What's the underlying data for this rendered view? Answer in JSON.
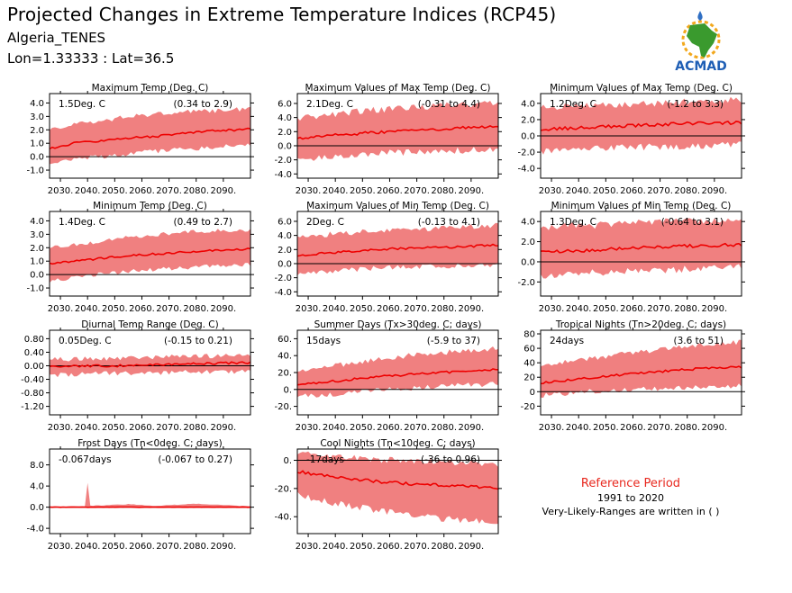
{
  "header": {
    "title": "Projected Changes in Extreme Temperature Indices (RCP45)",
    "station": "Algeria_TENES",
    "coords": "Lon=1.33333 : Lat=36.5"
  },
  "logo": {
    "text": "ACMAD",
    "colors": {
      "africa": "#3a9a2e",
      "text": "#1f5fb5",
      "sun": "#f2a81d",
      "drop": "#2f6fc4"
    }
  },
  "legend": {
    "title": "Reference Period",
    "period": "1991 to 2020",
    "note": "Very-Likely-Ranges are written in ( )"
  },
  "colors": {
    "band": "#f08080",
    "line": "#ee0000",
    "zero": "#000000"
  },
  "chart_data": [
    {
      "type": "area",
      "title": "Maximum Temp (Deg. C)",
      "summary": "1.5Deg. C",
      "range": "(0.34 to 2.9)",
      "x_ticks": [
        "2030.",
        "2040.",
        "2050.",
        "2060.",
        "2070.",
        "2080.",
        "2090."
      ],
      "xlim": [
        2026,
        2100
      ],
      "y_ticks": [
        "-1.0",
        "0.0",
        "1.0",
        "2.0",
        "3.0",
        "4.0"
      ],
      "ylim": [
        -1.6,
        4.7
      ],
      "median": [
        [
          2026,
          0.6
        ],
        [
          2035,
          1.0
        ],
        [
          2045,
          1.2
        ],
        [
          2055,
          1.4
        ],
        [
          2065,
          1.5
        ],
        [
          2075,
          1.75
        ],
        [
          2085,
          1.9
        ],
        [
          2100,
          2.05
        ]
      ],
      "low": [
        [
          2026,
          -0.4
        ],
        [
          2035,
          0.0
        ],
        [
          2045,
          0.2
        ],
        [
          2055,
          0.4
        ],
        [
          2065,
          0.6
        ],
        [
          2075,
          0.7
        ],
        [
          2085,
          0.9
        ],
        [
          2100,
          1.0
        ]
      ],
      "high": [
        [
          2026,
          1.8
        ],
        [
          2035,
          2.2
        ],
        [
          2045,
          2.5
        ],
        [
          2055,
          2.8
        ],
        [
          2065,
          3.0
        ],
        [
          2075,
          3.2
        ],
        [
          2085,
          3.2
        ],
        [
          2100,
          3.4
        ]
      ],
      "seed": 11,
      "noise": 0.45
    },
    {
      "type": "area",
      "title": "Maximum Values of Max Temp (Deg. C)",
      "summary": "2.1Deg. C",
      "range": "(-0.31 to 4.4)",
      "x_ticks": [
        "2030.",
        "2040.",
        "2050.",
        "2060.",
        "2070.",
        "2080.",
        "2090."
      ],
      "xlim": [
        2026,
        2100
      ],
      "y_ticks": [
        "-4.0",
        "-2.0",
        "0.0",
        "2.0",
        "4.0",
        "6.0"
      ],
      "ylim": [
        -4.6,
        7.4
      ],
      "median": [
        [
          2026,
          1.0
        ],
        [
          2040,
          1.5
        ],
        [
          2055,
          1.9
        ],
        [
          2070,
          2.2
        ],
        [
          2085,
          2.5
        ],
        [
          2100,
          2.8
        ]
      ],
      "low": [
        [
          2026,
          -1.5
        ],
        [
          2040,
          -1.0
        ],
        [
          2055,
          -0.6
        ],
        [
          2070,
          -0.4
        ],
        [
          2085,
          -0.2
        ],
        [
          2100,
          0.0
        ]
      ],
      "high": [
        [
          2026,
          3.5
        ],
        [
          2040,
          4.0
        ],
        [
          2055,
          4.6
        ],
        [
          2070,
          5.0
        ],
        [
          2085,
          5.3
        ],
        [
          2100,
          5.6
        ]
      ],
      "seed": 23,
      "noise": 1.2
    },
    {
      "type": "area",
      "title": "Minimum Values of Max Temp (Deg. C)",
      "summary": "1.2Deg. C",
      "range": "(-1.2 to 3.3)",
      "x_ticks": [
        "2030.",
        "2040.",
        "2050.",
        "2060.",
        "2070.",
        "2080.",
        "2090."
      ],
      "xlim": [
        2026,
        2100
      ],
      "y_ticks": [
        "-4.0",
        "-2.0",
        "0.0",
        "2.0",
        "4.0"
      ],
      "ylim": [
        -5.2,
        5.2
      ],
      "median": [
        [
          2026,
          0.8
        ],
        [
          2040,
          1.0
        ],
        [
          2055,
          1.2
        ],
        [
          2070,
          1.4
        ],
        [
          2085,
          1.6
        ],
        [
          2100,
          1.6
        ]
      ],
      "low": [
        [
          2026,
          -1.5
        ],
        [
          2040,
          -1.3
        ],
        [
          2055,
          -1.0
        ],
        [
          2070,
          -0.9
        ],
        [
          2085,
          -0.8
        ],
        [
          2100,
          -0.6
        ]
      ],
      "high": [
        [
          2026,
          3.0
        ],
        [
          2040,
          3.2
        ],
        [
          2055,
          3.4
        ],
        [
          2070,
          3.6
        ],
        [
          2085,
          3.8
        ],
        [
          2100,
          4.0
        ]
      ],
      "seed": 37,
      "noise": 1.1
    },
    {
      "type": "area",
      "title": "Minimum Temp (Deg. C)",
      "summary": "1.4Deg. C",
      "range": "(0.49 to 2.7)",
      "x_ticks": [
        "2030.",
        "2040.",
        "2050.",
        "2060.",
        "2070.",
        "2080.",
        "2090."
      ],
      "xlim": [
        2026,
        2100
      ],
      "y_ticks": [
        "-1.0",
        "0.0",
        "1.0",
        "2.0",
        "3.0",
        "4.0"
      ],
      "ylim": [
        -1.6,
        4.7
      ],
      "median": [
        [
          2026,
          0.8
        ],
        [
          2040,
          1.1
        ],
        [
          2055,
          1.4
        ],
        [
          2070,
          1.6
        ],
        [
          2085,
          1.8
        ],
        [
          2100,
          1.9
        ]
      ],
      "low": [
        [
          2026,
          -0.3
        ],
        [
          2040,
          0.1
        ],
        [
          2055,
          0.4
        ],
        [
          2070,
          0.6
        ],
        [
          2085,
          0.8
        ],
        [
          2100,
          0.9
        ]
      ],
      "high": [
        [
          2026,
          1.8
        ],
        [
          2040,
          2.2
        ],
        [
          2055,
          2.6
        ],
        [
          2070,
          2.9
        ],
        [
          2085,
          3.1
        ],
        [
          2100,
          3.2
        ]
      ],
      "seed": 41,
      "noise": 0.4
    },
    {
      "type": "area",
      "title": "Maximum Values of Min Temp (Deg. C)",
      "summary": "2Deg. C",
      "range": "(-0.13 to 4.1)",
      "x_ticks": [
        "2030.",
        "2040.",
        "2050.",
        "2060.",
        "2070.",
        "2080.",
        "2090."
      ],
      "xlim": [
        2026,
        2100
      ],
      "y_ticks": [
        "-4.0",
        "-2.0",
        "0.0",
        "2.0",
        "4.0",
        "6.0"
      ],
      "ylim": [
        -4.6,
        7.4
      ],
      "median": [
        [
          2026,
          1.2
        ],
        [
          2040,
          1.6
        ],
        [
          2055,
          2.0
        ],
        [
          2070,
          2.2
        ],
        [
          2085,
          2.4
        ],
        [
          2100,
          2.6
        ]
      ],
      "low": [
        [
          2026,
          -1.0
        ],
        [
          2040,
          -0.6
        ],
        [
          2055,
          -0.3
        ],
        [
          2070,
          0.0
        ],
        [
          2085,
          0.1
        ],
        [
          2100,
          0.3
        ]
      ],
      "high": [
        [
          2026,
          3.5
        ],
        [
          2040,
          3.8
        ],
        [
          2055,
          4.2
        ],
        [
          2070,
          4.5
        ],
        [
          2085,
          4.7
        ],
        [
          2100,
          5.0
        ]
      ],
      "seed": 53,
      "noise": 1.0
    },
    {
      "type": "area",
      "title": "Minimum Values of Min Temp (Deg. C)",
      "summary": "1.3Deg. C",
      "range": "(-0.64 to 3.1)",
      "x_ticks": [
        "2030.",
        "2040.",
        "2050.",
        "2060.",
        "2070.",
        "2080.",
        "2090."
      ],
      "xlim": [
        2026,
        2100
      ],
      "y_ticks": [
        "-2.0",
        "0.0",
        "2.0",
        "4.0"
      ],
      "ylim": [
        -3.4,
        5.0
      ],
      "median": [
        [
          2026,
          1.0
        ],
        [
          2040,
          1.1
        ],
        [
          2055,
          1.3
        ],
        [
          2070,
          1.5
        ],
        [
          2085,
          1.6
        ],
        [
          2100,
          1.7
        ]
      ],
      "low": [
        [
          2026,
          -1.0
        ],
        [
          2040,
          -0.8
        ],
        [
          2055,
          -0.6
        ],
        [
          2070,
          -0.5
        ],
        [
          2085,
          -0.3
        ],
        [
          2100,
          -0.2
        ]
      ],
      "high": [
        [
          2026,
          3.0
        ],
        [
          2040,
          3.2
        ],
        [
          2055,
          3.4
        ],
        [
          2070,
          3.6
        ],
        [
          2085,
          3.7
        ],
        [
          2100,
          3.9
        ]
      ],
      "seed": 67,
      "noise": 0.9
    },
    {
      "type": "area",
      "title": "Diurnal Temp Range (Deg. C)",
      "summary": "0.05Deg. C",
      "range": "(-0.15 to 0.21)",
      "x_ticks": [
        "2030.",
        "2040.",
        "2050.",
        "2060.",
        "2070.",
        "2080.",
        "2090."
      ],
      "xlim": [
        2026,
        2100
      ],
      "y_ticks": [
        "-1.20",
        "-0.80",
        "-0.40",
        "0.00",
        "0.40",
        "0.80"
      ],
      "ylim": [
        -1.45,
        1.05
      ],
      "median": [
        [
          2026,
          -0.02
        ],
        [
          2050,
          0.0
        ],
        [
          2075,
          0.05
        ],
        [
          2100,
          0.1
        ]
      ],
      "low": [
        [
          2026,
          -0.2
        ],
        [
          2050,
          -0.15
        ],
        [
          2075,
          -0.12
        ],
        [
          2100,
          -0.1
        ]
      ],
      "high": [
        [
          2026,
          0.12
        ],
        [
          2050,
          0.15
        ],
        [
          2075,
          0.2
        ],
        [
          2100,
          0.25
        ]
      ],
      "seed": 71,
      "noise": 0.18
    },
    {
      "type": "area",
      "title": "Summer Days (Tx>30deg. C; days)",
      "summary": "15days",
      "range": "(-5.9 to 37)",
      "x_ticks": [
        "2030.",
        "2040.",
        "2050.",
        "2060.",
        "2070.",
        "2080.",
        "2090."
      ],
      "xlim": [
        2026,
        2100
      ],
      "y_ticks": [
        "-20.",
        "0.",
        "20.",
        "40.",
        "60."
      ],
      "ylim": [
        -30,
        70
      ],
      "median": [
        [
          2026,
          5
        ],
        [
          2040,
          10
        ],
        [
          2055,
          15
        ],
        [
          2070,
          18
        ],
        [
          2085,
          21
        ],
        [
          2100,
          24
        ]
      ],
      "low": [
        [
          2026,
          -5
        ],
        [
          2040,
          -2
        ],
        [
          2055,
          2
        ],
        [
          2070,
          5
        ],
        [
          2085,
          8
        ],
        [
          2100,
          10
        ]
      ],
      "high": [
        [
          2026,
          18
        ],
        [
          2040,
          25
        ],
        [
          2055,
          32
        ],
        [
          2070,
          38
        ],
        [
          2085,
          42
        ],
        [
          2100,
          45
        ]
      ],
      "seed": 83,
      "noise": 8
    },
    {
      "type": "area",
      "title": "Tropical Nights (Tn>20deg. C; days)",
      "summary": "24days",
      "range": "(3.6 to 51)",
      "x_ticks": [
        "2030.",
        "2040.",
        "2050.",
        "2060.",
        "2070.",
        "2080.",
        "2090."
      ],
      "xlim": [
        2026,
        2100
      ],
      "y_ticks": [
        "-20",
        "0",
        "20",
        "40",
        "60",
        "80"
      ],
      "ylim": [
        -32,
        85
      ],
      "median": [
        [
          2026,
          12
        ],
        [
          2040,
          18
        ],
        [
          2055,
          23
        ],
        [
          2070,
          28
        ],
        [
          2085,
          32
        ],
        [
          2100,
          34
        ]
      ],
      "low": [
        [
          2026,
          -2
        ],
        [
          2040,
          3
        ],
        [
          2055,
          6
        ],
        [
          2070,
          8
        ],
        [
          2085,
          10
        ],
        [
          2100,
          12
        ]
      ],
      "high": [
        [
          2026,
          32
        ],
        [
          2040,
          40
        ],
        [
          2055,
          48
        ],
        [
          2070,
          55
        ],
        [
          2085,
          60
        ],
        [
          2100,
          65
        ]
      ],
      "seed": 97,
      "noise": 9
    },
    {
      "type": "area",
      "title": "Frost Days (Tn<0deg. C; days)",
      "summary": "-0.067days",
      "range": "(-0.067 to 0.27)",
      "x_ticks": [
        "2030.",
        "2040.",
        "2050.",
        "2060.",
        "2070.",
        "2080.",
        "2090."
      ],
      "xlim": [
        2026,
        2100
      ],
      "y_ticks": [
        "-4.0",
        "0.0",
        "4.0",
        "8.0"
      ],
      "ylim": [
        -5.0,
        11.0
      ],
      "median": [
        [
          2026,
          0
        ],
        [
          2100,
          0
        ]
      ],
      "low": [
        [
          2026,
          0
        ],
        [
          2100,
          0
        ]
      ],
      "high": [
        [
          2026,
          0.1
        ],
        [
          2039,
          0.1
        ],
        [
          2040,
          4.5
        ],
        [
          2041,
          0.2
        ],
        [
          2055,
          0.5
        ],
        [
          2065,
          0.2
        ],
        [
          2080,
          0.6
        ],
        [
          2100,
          0.1
        ]
      ],
      "seed": 101,
      "noise": 0.15
    },
    {
      "type": "area",
      "title": "Cool Nights (Tn<10deg. C; days)",
      "summary": "-17days",
      "range": "(-36 to 0.96)",
      "x_ticks": [
        "2030.",
        "2040.",
        "2050.",
        "2060.",
        "2070.",
        "2080.",
        "2090."
      ],
      "xlim": [
        2026,
        2100
      ],
      "y_ticks": [
        "-40.",
        "-20.",
        "0."
      ],
      "ylim": [
        -52,
        8
      ],
      "median": [
        [
          2026,
          -8
        ],
        [
          2040,
          -12
        ],
        [
          2055,
          -15
        ],
        [
          2070,
          -17
        ],
        [
          2085,
          -18
        ],
        [
          2100,
          -20
        ]
      ],
      "low": [
        [
          2026,
          -22
        ],
        [
          2040,
          -28
        ],
        [
          2055,
          -33
        ],
        [
          2070,
          -37
        ],
        [
          2085,
          -40
        ],
        [
          2100,
          -42
        ]
      ],
      "high": [
        [
          2026,
          2
        ],
        [
          2040,
          0
        ],
        [
          2055,
          -2
        ],
        [
          2070,
          -3
        ],
        [
          2085,
          -4
        ],
        [
          2100,
          -5
        ]
      ],
      "seed": 113,
      "noise": 6
    }
  ]
}
